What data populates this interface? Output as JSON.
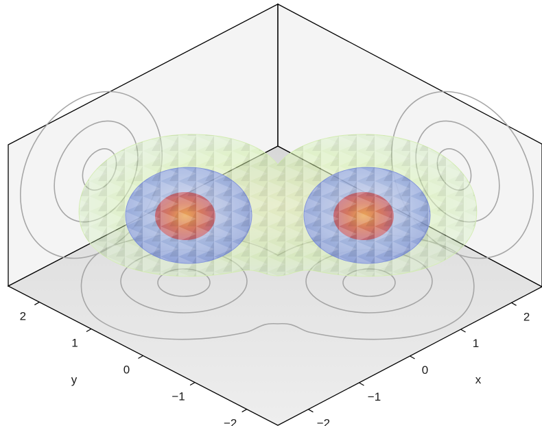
{
  "chart_data": {
    "type": "3d-contour-isosurface",
    "title": "",
    "xlabel": "x",
    "ylabel": "y",
    "zlabel": "",
    "x_ticks": [
      "−2",
      "−1",
      "0",
      "1",
      "2"
    ],
    "y_ticks": [
      "−2",
      "−1",
      "0",
      "1",
      "2"
    ],
    "xlim": [
      -2.6,
      2.6
    ],
    "ylim": [
      -2.6,
      2.6
    ],
    "grid": false,
    "lobes": [
      {
        "center": [
          -1.6,
          1.6
        ]
      },
      {
        "center": [
          1.6,
          -1.6
        ]
      }
    ],
    "isosurface_levels": [
      {
        "level": "outer",
        "color": "#c9f0a0"
      },
      {
        "level": "middle",
        "color": "#8c9ee8"
      },
      {
        "level": "inner",
        "color": "#e05a4a"
      }
    ],
    "contour_color": "#a6a6a6",
    "floor_color": "#e6e6e6"
  }
}
